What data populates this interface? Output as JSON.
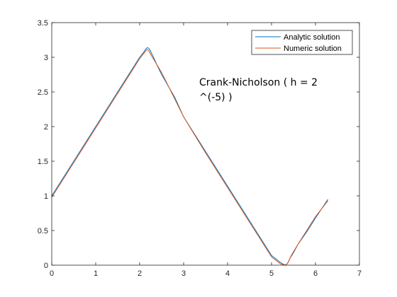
{
  "chart_data": {
    "type": "line",
    "title": "",
    "xlabel": "",
    "ylabel": "",
    "xlim": [
      0,
      7
    ],
    "ylim": [
      0,
      3.5
    ],
    "x_ticks": [
      0,
      1,
      2,
      3,
      4,
      5,
      6,
      7
    ],
    "y_ticks": [
      0,
      0.5,
      1,
      1.5,
      2,
      2.5,
      3,
      3.5
    ],
    "x_tick_labels": [
      "0",
      "1",
      "2",
      "3",
      "4",
      "5",
      "6",
      "7"
    ],
    "y_tick_labels": [
      "0",
      "0.5",
      "1",
      "1.5",
      "2",
      "2.5",
      "3",
      "3.5"
    ],
    "grid": false,
    "legend_position": "top-right",
    "annotation": [
      "Crank-Nicholson ( h = 2",
      "^(-5) )"
    ],
    "series": [
      {
        "name": "Analytic solution",
        "color": "#0072BD",
        "x": [
          0,
          0.5,
          1.0,
          1.5,
          2.0,
          2.1,
          2.14,
          2.18,
          2.22,
          2.3,
          2.4,
          2.5,
          2.6,
          2.8,
          3.0,
          3.5,
          4.0,
          4.5,
          5.0,
          5.2,
          5.28,
          5.32,
          5.37,
          5.42,
          5.5,
          5.6,
          5.8,
          6.0,
          6.283
        ],
        "y": [
          1.0,
          1.5,
          2.0,
          2.5,
          3.0,
          3.08,
          3.12,
          3.14,
          3.12,
          3.02,
          2.88,
          2.75,
          2.64,
          2.42,
          2.14,
          1.64,
          1.14,
          0.64,
          0.14,
          0.04,
          0.01,
          0.0,
          0.03,
          0.1,
          0.18,
          0.3,
          0.48,
          0.68,
          0.95
        ]
      },
      {
        "name": "Numeric solution",
        "color": "#D95319",
        "x": [
          0,
          0.5,
          1.0,
          1.5,
          2.0,
          2.1,
          2.16,
          2.2,
          2.3,
          2.5,
          3.0,
          3.5,
          4.0,
          4.5,
          5.0,
          5.2,
          5.3,
          5.36,
          5.45,
          5.6,
          5.8,
          6.0,
          6.283
        ],
        "y": [
          0.98,
          1.48,
          1.98,
          2.48,
          2.98,
          3.06,
          3.11,
          3.1,
          2.99,
          2.78,
          2.14,
          1.62,
          1.12,
          0.62,
          0.12,
          0.02,
          0.0,
          0.02,
          0.14,
          0.3,
          0.5,
          0.7,
          0.93
        ]
      }
    ]
  }
}
